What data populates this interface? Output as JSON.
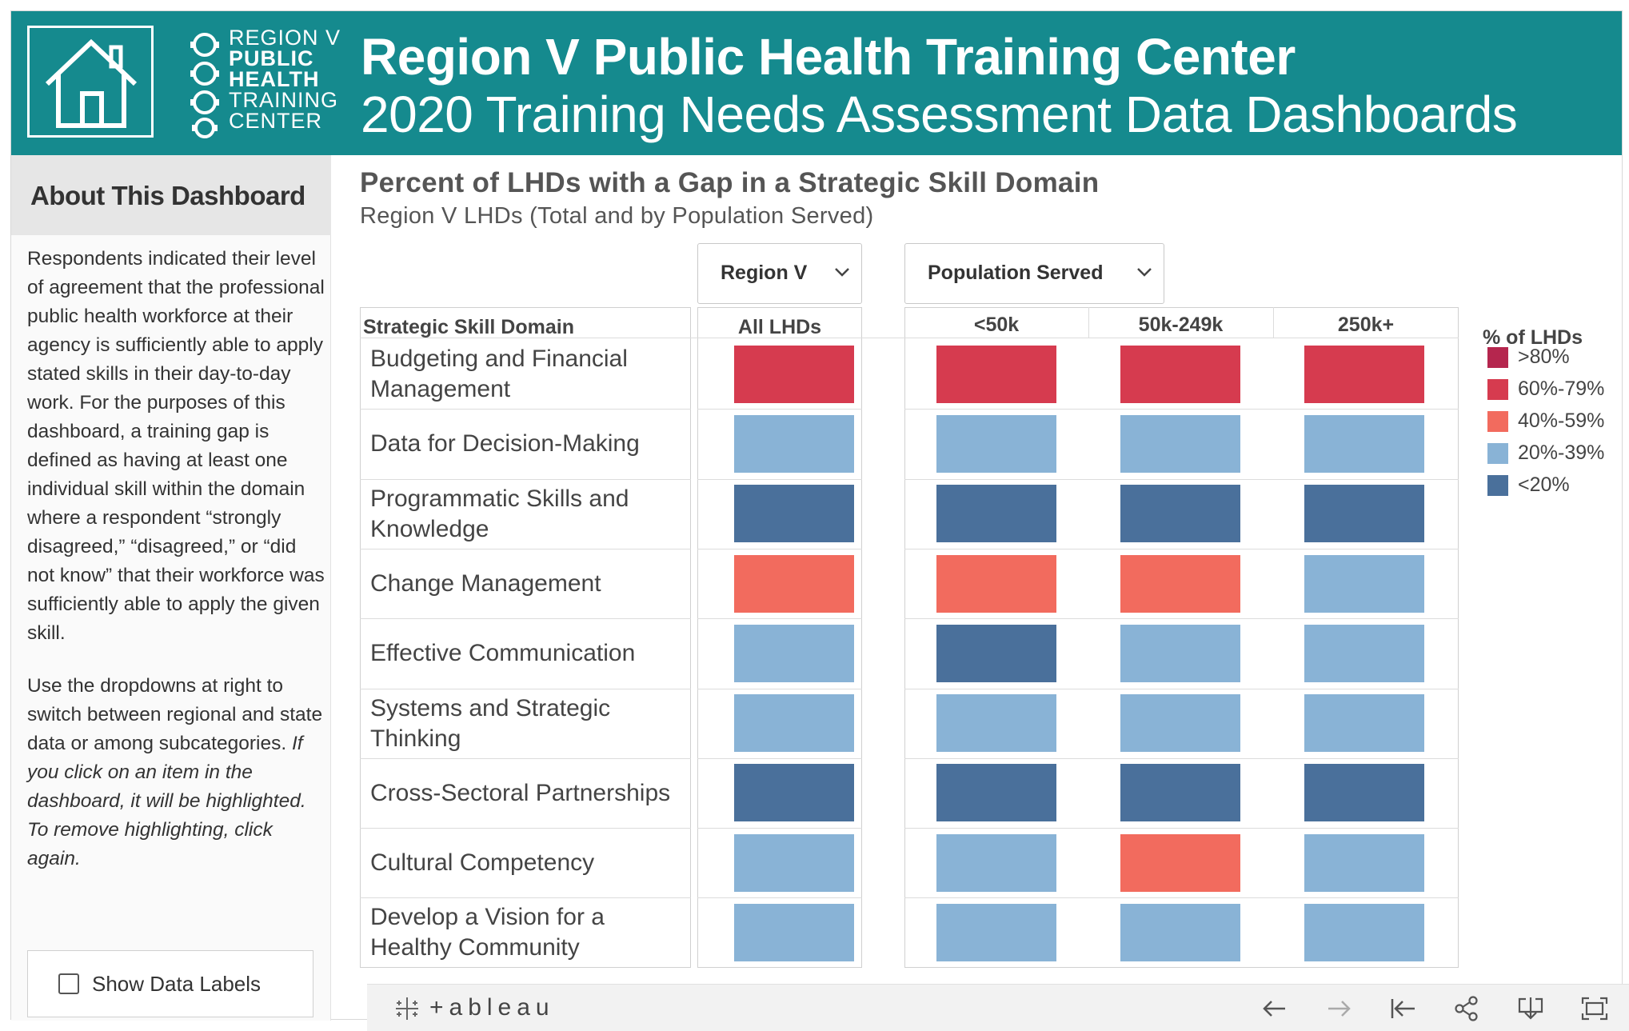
{
  "header": {
    "title": "Region V Public Health Training Center",
    "subtitle": "2020 Training Needs Assessment Data Dashboards",
    "logo_lines": [
      "REGION V",
      "PUBLIC",
      "HEALTH",
      "TRAINING",
      "CENTER"
    ]
  },
  "sidebar": {
    "title": "About This Dashboard",
    "paragraph1": "Respondents indicated their level of agreement that the professional public health workforce at their agency is sufficiently able to apply stated skills in their day-to-day work. For the purposes of this dashboard, a training gap is defined as having at least one individual skill within the domain where a respondent “strongly disagreed,” “disagreed,” or “did not know” that their workforce was sufficiently able to apply the given skill.",
    "paragraph2_plain": "Use the dropdowns at right to switch between regional and state data or among subcategories. ",
    "paragraph2_italic": "If you click on an item in the dashboard, it will be highlighted. To remove highlighting, click again.",
    "show_labels": "Show Data Labels",
    "show_labels_checked": false
  },
  "main": {
    "title": "Percent of LHDs with a Gap in a Strategic Skill Domain",
    "subtitle": "Region V LHDs (Total and by Population Served)",
    "dropdown_region": "Region V",
    "dropdown_population": "Population Served",
    "row_header": "Strategic Skill Domain",
    "col_all": "All LHDs",
    "col_groups": [
      "<50k",
      "50k-249k",
      "250k+"
    ]
  },
  "legend": {
    "title": "% of LHDs",
    "items": [
      {
        "key": "gt80",
        "label": ">80%",
        "color": "#b5264e"
      },
      {
        "key": "60_79",
        "label": "60%-79%",
        "color": "#d63b4f"
      },
      {
        "key": "40_59",
        "label": "40%-59%",
        "color": "#f26b5e"
      },
      {
        "key": "20_39",
        "label": "20%-39%",
        "color": "#89b3d6"
      },
      {
        "key": "lt20",
        "label": "<20%",
        "color": "#4a709b"
      }
    ]
  },
  "chart_data": {
    "type": "heatmap",
    "title": "Percent of LHDs with a Gap in a Strategic Skill Domain",
    "subtitle": "Region V LHDs (Total and by Population Served)",
    "columns": [
      "All LHDs",
      "<50k",
      "50k-249k",
      "250k+"
    ],
    "rows": [
      {
        "domain": "Budgeting and Financial Management",
        "bins": [
          "60_79",
          "60_79",
          "60_79",
          "60_79"
        ]
      },
      {
        "domain": "Data for Decision-Making",
        "bins": [
          "20_39",
          "20_39",
          "20_39",
          "20_39"
        ]
      },
      {
        "domain": "Programmatic Skills and Knowledge",
        "bins": [
          "lt20",
          "lt20",
          "lt20",
          "lt20"
        ]
      },
      {
        "domain": "Change Management",
        "bins": [
          "40_59",
          "40_59",
          "40_59",
          "20_39"
        ]
      },
      {
        "domain": "Effective Communication",
        "bins": [
          "20_39",
          "lt20",
          "20_39",
          "20_39"
        ]
      },
      {
        "domain": "Systems and Strategic Thinking",
        "bins": [
          "20_39",
          "20_39",
          "20_39",
          "20_39"
        ]
      },
      {
        "domain": "Cross-Sectoral Partnerships",
        "bins": [
          "lt20",
          "lt20",
          "lt20",
          "lt20"
        ]
      },
      {
        "domain": "Cultural Competency",
        "bins": [
          "20_39",
          "20_39",
          "40_59",
          "20_39"
        ]
      },
      {
        "domain": "Develop a Vision for a Healthy Community",
        "bins": [
          "20_39",
          "20_39",
          "20_39",
          "20_39"
        ]
      }
    ]
  },
  "toolbar": {
    "brand": "+ableau"
  }
}
